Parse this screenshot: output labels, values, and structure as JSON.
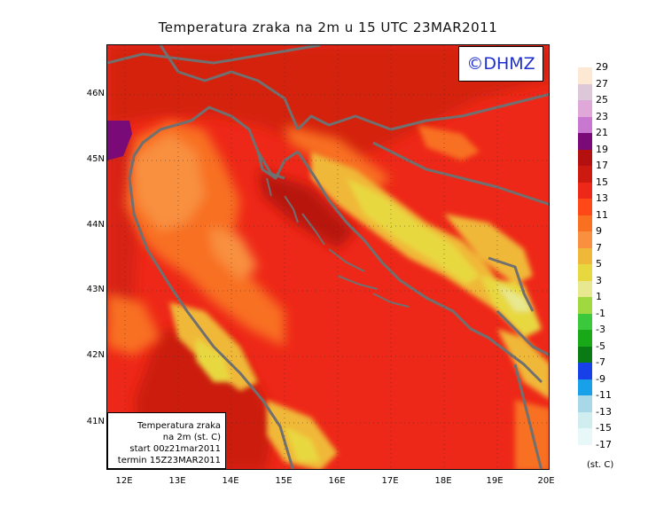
{
  "title": "Temperatura zraka na 2m u 15 UTC 23MAR2011",
  "logo": "©DHMZ",
  "infobox": {
    "line1": "Temperatura zraka",
    "line2": "na 2m (st. C)",
    "line3": "start 00z21mar2011",
    "line4": "termin 15Z23MAR2011"
  },
  "lat_labels": [
    "46N",
    "45N",
    "44N",
    "43N",
    "42N",
    "41N"
  ],
  "lon_labels": [
    "12E",
    "13E",
    "14E",
    "15E",
    "16E",
    "17E",
    "18E",
    "19E",
    "20E"
  ],
  "legend": {
    "unit": "(st. C)",
    "labels": [
      "29",
      "27",
      "25",
      "23",
      "21",
      "19",
      "17",
      "15",
      "13",
      "11",
      "9",
      "7",
      "5",
      "3",
      "1",
      "-1",
      "-3",
      "-5",
      "-7",
      "-9",
      "-11",
      "-13",
      "-15",
      "-17"
    ],
    "colors": [
      "#fde8d4",
      "#dcc8d8",
      "#e0a8d8",
      "#c878d0",
      "#7a0a78",
      "#b41010",
      "#cc1a10",
      "#ee2818",
      "#ff4818",
      "#f87020",
      "#f89040",
      "#f0b838",
      "#e8d840",
      "#e8e890",
      "#a0d840",
      "#3cc83c",
      "#18a818",
      "#0a7a14",
      "#1840e8",
      "#18a0e8",
      "#a8d8e8",
      "#d0eef0",
      "#e8f8f8"
    ]
  },
  "colors": {
    "sea": "#ee2818",
    "land_base": "#ff4818",
    "coast": "#707070"
  }
}
